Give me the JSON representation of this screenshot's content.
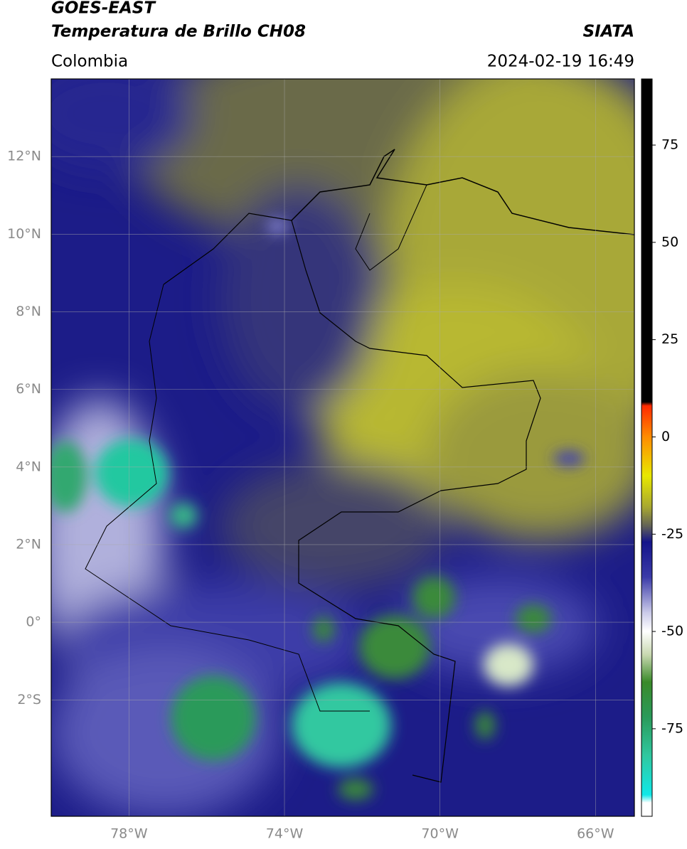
{
  "header": {
    "title": "GOES-EAST",
    "subtitle": "Temperatura de Brillo CH08",
    "source": "SIATA",
    "region": "Colombia",
    "datetime": "2024-02-19 16:49"
  },
  "map": {
    "xlim": [
      -80,
      -65
    ],
    "ylim": [
      -5,
      14
    ],
    "xticks": [
      {
        "value": -78,
        "label": "78°W"
      },
      {
        "value": -74,
        "label": "74°W"
      },
      {
        "value": -70,
        "label": "70°W"
      },
      {
        "value": -66,
        "label": "66°W"
      }
    ],
    "yticks": [
      {
        "value": 12,
        "label": "12°N"
      },
      {
        "value": 10,
        "label": "10°N"
      },
      {
        "value": 8,
        "label": "8°N"
      },
      {
        "value": 6,
        "label": "6°N"
      },
      {
        "value": 4,
        "label": "4°N"
      },
      {
        "value": 2,
        "label": "2°N"
      },
      {
        "value": 0,
        "label": "0°"
      },
      {
        "value": -2,
        "label": "2°S"
      }
    ],
    "grid": true
  },
  "colorbar": {
    "lim": [
      -97.5,
      92
    ],
    "ticks": [
      75,
      50,
      25,
      0,
      -25,
      -50,
      -75
    ],
    "colormap": [
      {
        "value": 92,
        "color": "#000000"
      },
      {
        "value": 9,
        "color": "#000000"
      },
      {
        "value": 8,
        "color": "#ff2a00"
      },
      {
        "value": 0,
        "color": "#ff8c00"
      },
      {
        "value": -10,
        "color": "#e8e800"
      },
      {
        "value": -18,
        "color": "#a8a830"
      },
      {
        "value": -23,
        "color": "#606058"
      },
      {
        "value": -27,
        "color": "#14148a"
      },
      {
        "value": -36,
        "color": "#3a3aa8"
      },
      {
        "value": -45,
        "color": "#c8c8e8"
      },
      {
        "value": -50,
        "color": "#ffffff"
      },
      {
        "value": -56,
        "color": "#c8d8b0"
      },
      {
        "value": -63,
        "color": "#3a8a2a"
      },
      {
        "value": -72,
        "color": "#2a9a5a"
      },
      {
        "value": -82,
        "color": "#30c8a0"
      },
      {
        "value": -92,
        "color": "#10e8e8"
      },
      {
        "value": -94,
        "color": "#ffffff"
      },
      {
        "value": -97.5,
        "color": "#ffffff"
      }
    ]
  }
}
